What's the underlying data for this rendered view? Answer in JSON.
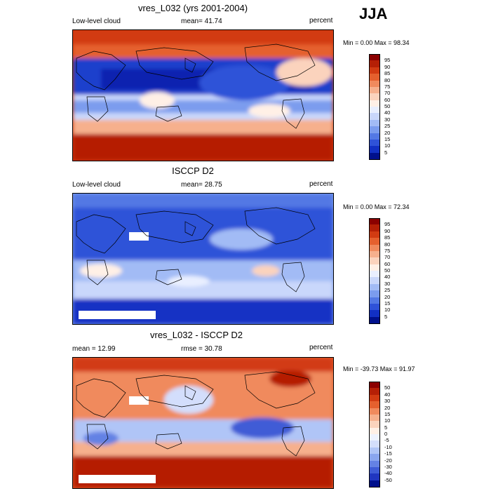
{
  "season": "JJA",
  "panels": [
    {
      "title": "vres_L032 (yrs 2001-2004)",
      "left_label": "Low-level cloud",
      "center_label": "mean=  41.74",
      "right_label": "percent",
      "minmax": "Min =   0.00 Max =  98.34",
      "scale": "sequential",
      "colorbar_ticks": [
        "95",
        "90",
        "85",
        "80",
        "75",
        "70",
        "60",
        "50",
        "40",
        "30",
        "25",
        "20",
        "15",
        "10",
        "5"
      ]
    },
    {
      "title": "ISCCP D2",
      "left_label": "Low-level cloud",
      "center_label": "mean=  28.75",
      "right_label": "percent",
      "minmax": "Min =   0.00 Max =  72.34",
      "scale": "sequential",
      "colorbar_ticks": [
        "95",
        "90",
        "85",
        "80",
        "75",
        "70",
        "60",
        "50",
        "40",
        "30",
        "25",
        "20",
        "15",
        "10",
        "5"
      ]
    },
    {
      "title": "vres_L032 - ISCCP D2",
      "left_label": "mean =  12.99",
      "center_label": "rmse =  30.78",
      "right_label": "percent",
      "minmax": "Min = -39.73 Max =  91.97",
      "scale": "diverging",
      "colorbar_ticks": [
        "50",
        "40",
        "30",
        "20",
        "15",
        "10",
        "5",
        "0",
        "-5",
        "-10",
        "-15",
        "-20",
        "-30",
        "-40",
        "-50"
      ]
    }
  ],
  "colors": {
    "sequential": [
      "#8b0000",
      "#b51f06",
      "#d23b12",
      "#e5602e",
      "#f08a5d",
      "#f6b08d",
      "#fbd3bd",
      "#fff0e6",
      "#e9efff",
      "#c9d7fb",
      "#a2bbf5",
      "#7b9cee",
      "#5378e4",
      "#2f52d8",
      "#1230c4",
      "#00108c"
    ],
    "diverging": [
      "#8b0000",
      "#b51f06",
      "#d23b12",
      "#e5602e",
      "#f08a5d",
      "#f6b08d",
      "#fbd3bd",
      "#fff0e6",
      "#eef3ff",
      "#d3defc",
      "#b0c5f7",
      "#8aa6ef",
      "#6482e4",
      "#3f5cd6",
      "#2036c0",
      "#00108c"
    ]
  }
}
